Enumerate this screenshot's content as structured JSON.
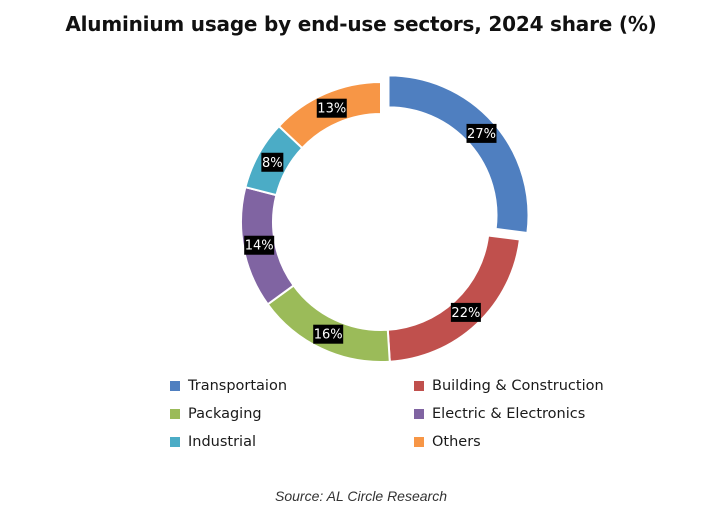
{
  "chart_data": {
    "type": "pie",
    "variant": "donut",
    "title": "Aluminium usage by end-use sectors, 2024 share (%)",
    "unit": "%",
    "categories": [
      "Transportaion",
      "Building & Construction",
      "Packaging",
      "Electric & Electronics",
      "Industrial",
      "Others"
    ],
    "values": [
      27,
      22,
      16,
      14,
      8,
      13
    ],
    "data_labels": [
      "27%",
      "22%",
      "16%",
      "14%",
      "8%",
      "13%"
    ],
    "colors": [
      "#4f7fc0",
      "#c0504d",
      "#9bbb59",
      "#8064a2",
      "#4bacc6",
      "#f79646"
    ],
    "exploded": "Transportaion",
    "legend_position": "bottom",
    "source": "Source: AL Circle Research"
  }
}
